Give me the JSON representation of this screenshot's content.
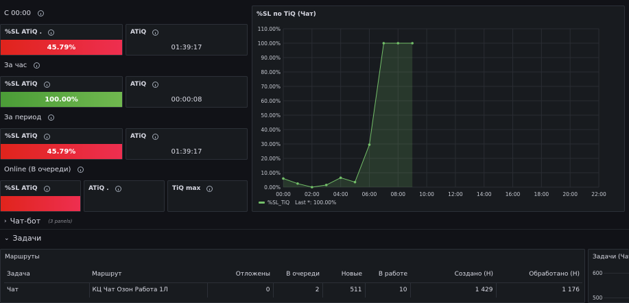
{
  "sections": {
    "since_midnight": "С 00:00",
    "per_hour": "За час",
    "per_period": "За период",
    "online": "Online (В очереди)"
  },
  "panels": {
    "r1_sl": {
      "title": "%SL ATiQ .",
      "value": "45.79%",
      "level": 0.4579
    },
    "r1_atiq": {
      "title": "ATiQ",
      "value": "01:39:17"
    },
    "r2_sl": {
      "title": "%SL ATiQ",
      "value": "100.00%",
      "level": 1.0
    },
    "r2_atiq": {
      "title": "ATiQ",
      "value": "00:00:08"
    },
    "r3_sl": {
      "title": "%SL ATiQ",
      "value": "45.79%",
      "level": 0.4579
    },
    "r3_atiq": {
      "title": "ATiQ",
      "value": "01:39:17"
    },
    "r4_sl": {
      "title": "%SL ATiQ"
    },
    "r4_atiq": {
      "title": "ATiQ ."
    },
    "r4_tiqmax": {
      "title": "TiQ max"
    }
  },
  "chart_data": {
    "type": "line",
    "title": "%SL по TiQ (Чат)",
    "y_ticks": [
      "0.00%",
      "10.00%",
      "20.00%",
      "30.00%",
      "40.00%",
      "50.00%",
      "60.00%",
      "70.00%",
      "80.00%",
      "90.00%",
      "100.00%",
      "110.00%"
    ],
    "x_ticks": [
      "00:00",
      "02:00",
      "04:00",
      "06:00",
      "08:00",
      "10:00",
      "12:00",
      "14:00",
      "16:00",
      "18:00",
      "20:00",
      "22:00"
    ],
    "ylim": [
      0,
      110
    ],
    "xlim_hours": [
      0,
      22
    ],
    "series": [
      {
        "name": "%SL_TiQ",
        "legend_suffix": "Last *: 100.00%",
        "color": "#73bf69",
        "x_hours": [
          0,
          1,
          2,
          3,
          4,
          5,
          6,
          7,
          8,
          9
        ],
        "values": [
          6,
          2.5,
          0,
          1.5,
          6.5,
          3.5,
          29.5,
          100,
          100,
          100
        ]
      }
    ],
    "grid": true,
    "legend_position": "bottom-left"
  },
  "rows": {
    "chat_bot": {
      "label": "Чат-бот",
      "note": "(3 panels)"
    },
    "tasks": {
      "label": "Задачи"
    }
  },
  "routes_table": {
    "title": "Маршруты",
    "headers": [
      "Задача",
      "Маршрут",
      "Отложены",
      "В очереди",
      "Новые",
      "В работе",
      "Создано (Н)",
      "Обработано (Н)"
    ],
    "rows": [
      [
        "Чат",
        "КЦ Чат Озон Работа 1Л",
        "0",
        "2",
        "511",
        "10",
        "1 429",
        "1 176"
      ]
    ]
  },
  "tasks_chart": {
    "title": "Задачи (Чат)",
    "y_ticks": [
      "600",
      "500"
    ]
  },
  "colors": {
    "bg": "#111217",
    "panel": "#181b1f",
    "red": "#e0241c",
    "green": "#73bf69"
  }
}
